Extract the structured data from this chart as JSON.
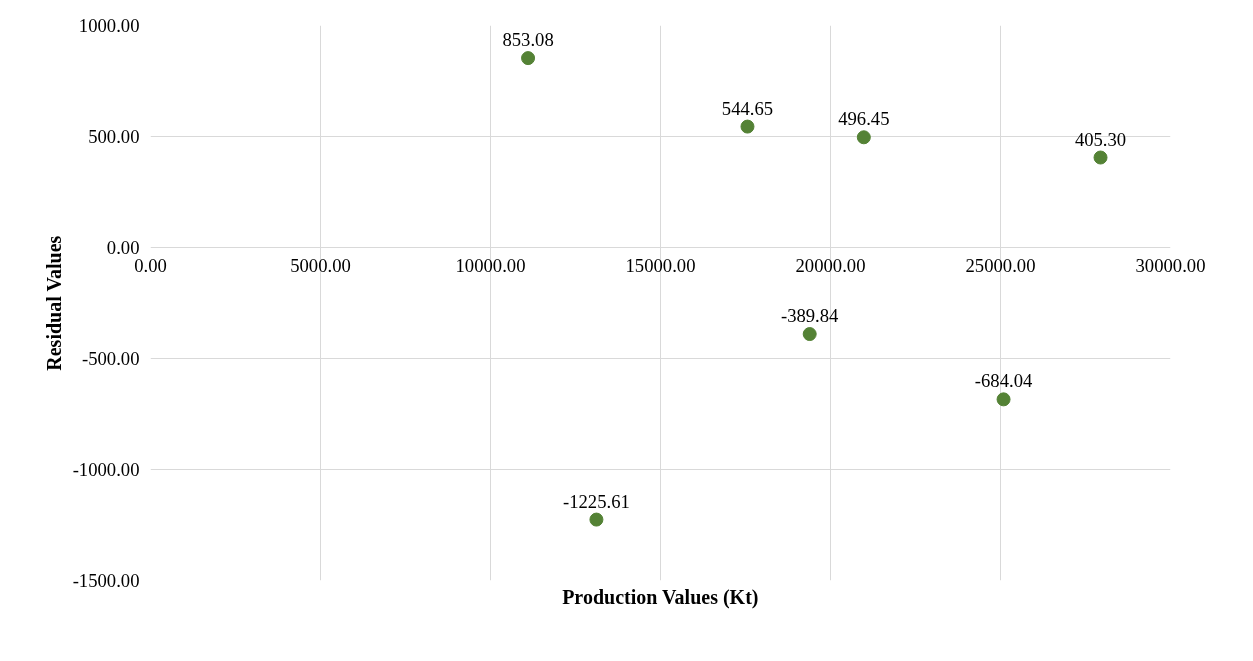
{
  "chart_data": {
    "type": "scatter",
    "xlabel": "Production Values (Kt)",
    "ylabel": "Residual Values",
    "x": [
      11105,
      13115,
      17558,
      19388,
      20980,
      25090,
      27942
    ],
    "series": [
      {
        "color": "#548235",
        "values": [
          853.08,
          -1225.61,
          544.65,
          -389.84,
          496.45,
          -684.04,
          405.3
        ],
        "value_labels": [
          "853.08",
          "-1225.61",
          "544.65",
          "-389.84",
          "496.45",
          "-684.04",
          "405.30"
        ]
      }
    ],
    "xlim": [
      0,
      30000
    ],
    "ylim": [
      -1500,
      1000
    ],
    "xticks": [
      {
        "value": 0,
        "label": "0.00"
      },
      {
        "value": 5000,
        "label": "5000.00"
      },
      {
        "value": 10000,
        "label": "10000.00"
      },
      {
        "value": 15000,
        "label": "15000.00"
      },
      {
        "value": 20000,
        "label": "20000.00"
      },
      {
        "value": 25000,
        "label": "25000.00"
      },
      {
        "value": 30000,
        "label": "30000.00"
      }
    ],
    "yticks": [
      {
        "value": -1500,
        "label": "-1500.00"
      },
      {
        "value": -1000,
        "label": "-1000.00"
      },
      {
        "value": -500,
        "label": "-500.00"
      },
      {
        "value": 0,
        "label": "0.00"
      },
      {
        "value": 500,
        "label": "500.00"
      },
      {
        "value": 1000,
        "label": "1000.00"
      }
    ],
    "grid": true,
    "marker": "circle"
  }
}
